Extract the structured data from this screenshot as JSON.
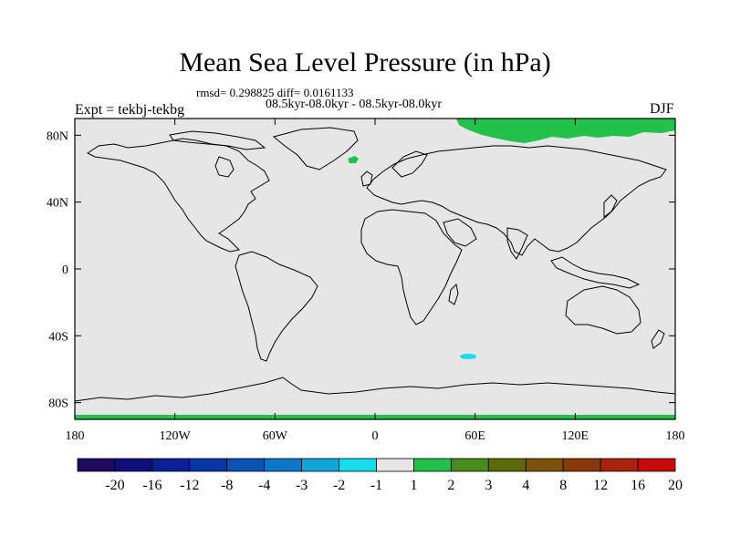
{
  "title": "Mean Sea Level Pressure (in hPa)",
  "stats": "rmsd= 0.298825 diff= 0.0161133",
  "period": "08.5kyr-08.0kyr - 08.5kyr-08.0kyr",
  "experiment": "Expt = tekbj-tekbg",
  "season": "DJF",
  "axes": {
    "lat_labels": [
      "80N",
      "40N",
      "0",
      "40S",
      "80S"
    ],
    "lat_values": [
      80,
      40,
      0,
      -40,
      -80
    ],
    "lon_labels": [
      "180",
      "120W",
      "60W",
      "0",
      "60E",
      "120E",
      "180"
    ],
    "lon_values": [
      -180,
      -120,
      -60,
      0,
      60,
      120,
      180
    ],
    "lat_range": [
      -90,
      90
    ],
    "lon_range": [
      -180,
      180
    ]
  },
  "colorbar": {
    "labels": [
      "-20",
      "-16",
      "-12",
      "-8",
      "-4",
      "-3",
      "-2",
      "-1",
      "1",
      "2",
      "3",
      "4",
      "8",
      "12",
      "16",
      "20"
    ],
    "colors": [
      "#1e0a5c",
      "#0d0f7a",
      "#0a1e96",
      "#0836a6",
      "#0a52b4",
      "#0a78c8",
      "#10a4d8",
      "#16dcec",
      "#e6e6e6",
      "#22c24a",
      "#4a8a1e",
      "#5e6a0a",
      "#7a520a",
      "#8a3a0a",
      "#a8220c",
      "#c80a0a"
    ]
  },
  "colors": {
    "background_field": "#e6e6e6",
    "positive_anomaly": "#22c24a",
    "negative_anomaly": "#16dcec"
  }
}
